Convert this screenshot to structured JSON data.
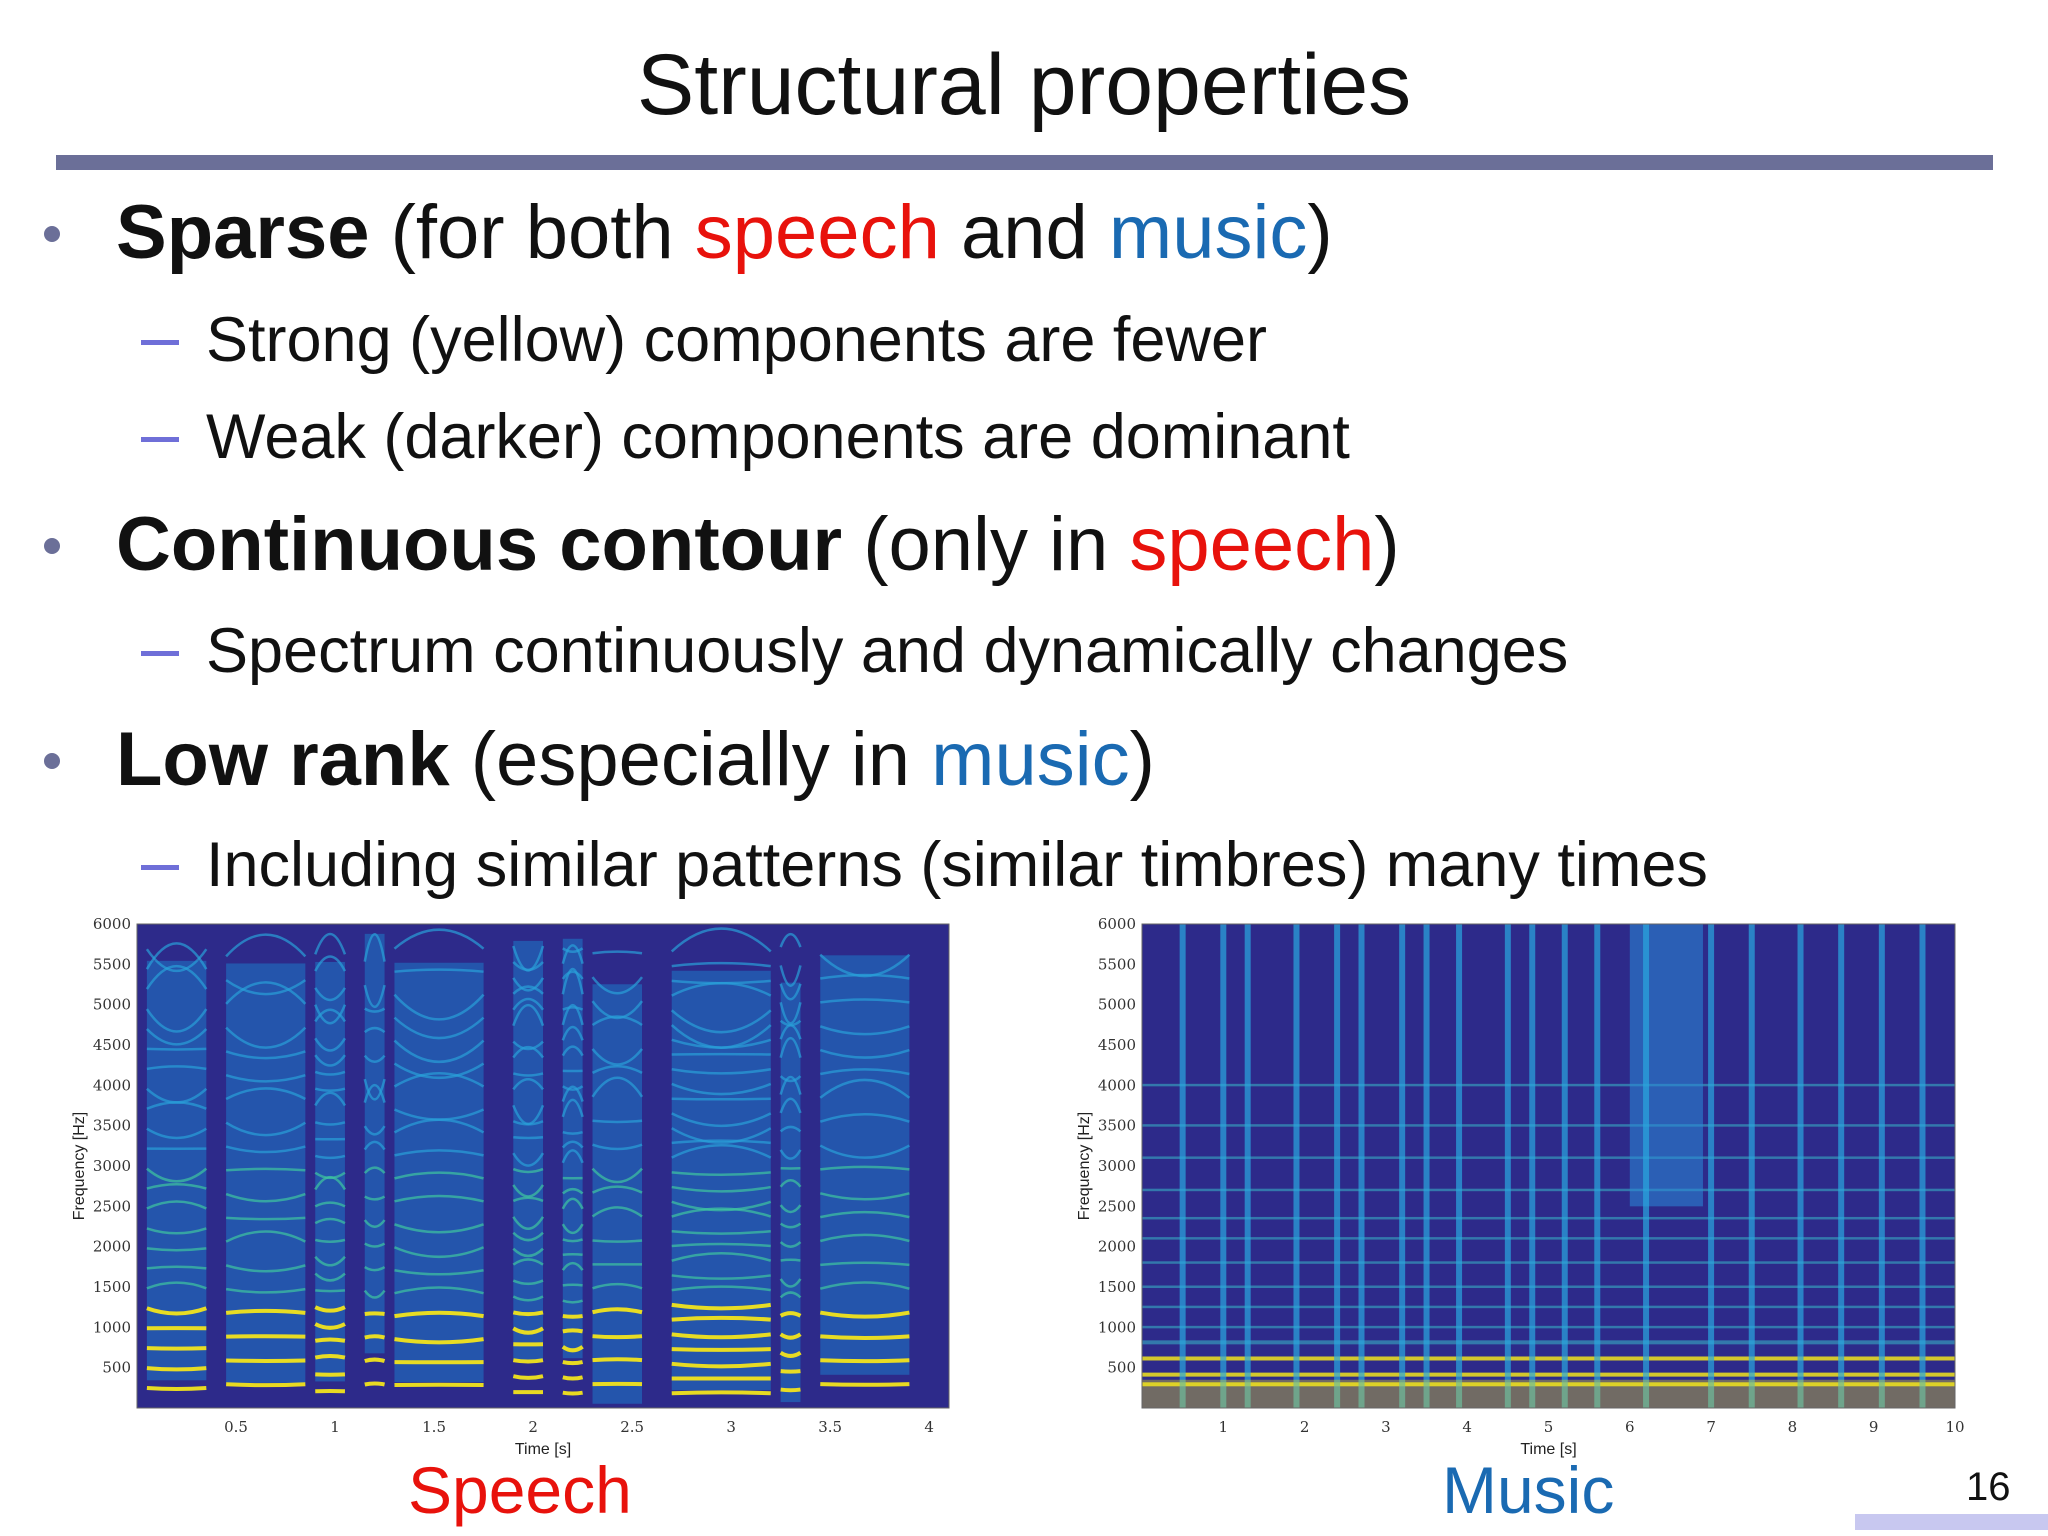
{
  "slide": {
    "title": "Structural properties",
    "page_number": "16"
  },
  "bullets": [
    {
      "bold": "Sparse",
      "rest": [
        {
          "text": " (for both ",
          "color": ""
        },
        {
          "text": "speech",
          "color": "red"
        },
        {
          "text": " and ",
          "color": ""
        },
        {
          "text": "music",
          "color": "blue"
        },
        {
          "text": ")",
          "color": ""
        }
      ],
      "subs": [
        "Strong (yellow) components are fewer",
        "Weak (darker) components are dominant"
      ]
    },
    {
      "bold": "Continuous contour",
      "rest": [
        {
          "text": " (only in ",
          "color": ""
        },
        {
          "text": "speech",
          "color": "red"
        },
        {
          "text": ")",
          "color": ""
        }
      ],
      "subs": [
        "Spectrum continuously and dynamically changes"
      ]
    },
    {
      "bold": "Low rank",
      "rest": [
        {
          "text": " (especially in ",
          "color": ""
        },
        {
          "text": "music",
          "color": "blue"
        },
        {
          "text": ")",
          "color": ""
        }
      ],
      "subs": [
        "Including similar patterns (similar timbres) many times"
      ]
    }
  ],
  "colors": {
    "speech": "#e8120c",
    "music": "#1a6ab2",
    "rule": "#6b6f98",
    "spectrogram_background": "#2d2a8a",
    "spectrogram_strong": "#f2e41c"
  },
  "chart_data": [
    {
      "type": "heatmap",
      "caption": "Speech",
      "xlabel": "Time [s]",
      "ylabel": "Frequency [Hz]",
      "xlim": [
        0,
        4.1
      ],
      "ylim": [
        0,
        6000
      ],
      "x_ticks": [
        "0.5",
        "1",
        "1.5",
        "2",
        "2.5",
        "3",
        "3.5",
        "4"
      ],
      "x_tick_values": [
        0.5,
        1,
        1.5,
        2,
        2.5,
        3,
        3.5,
        4
      ],
      "y_ticks": [
        "500",
        "1000",
        "1500",
        "2000",
        "2500",
        "3000",
        "3500",
        "4000",
        "4500",
        "5000",
        "5500",
        "6000"
      ],
      "y_tick_values": [
        500,
        1000,
        1500,
        2000,
        2500,
        3000,
        3500,
        4000,
        4500,
        5000,
        5500,
        6000
      ],
      "segments": [
        [
          0.05,
          0.35
        ],
        [
          0.45,
          0.85
        ],
        [
          0.9,
          1.05
        ],
        [
          1.15,
          1.25
        ],
        [
          1.3,
          1.75
        ],
        [
          1.9,
          2.05
        ],
        [
          2.15,
          2.25
        ],
        [
          2.3,
          2.55
        ],
        [
          2.7,
          3.2
        ],
        [
          3.25,
          3.35
        ],
        [
          3.45,
          3.9
        ]
      ]
    },
    {
      "type": "heatmap",
      "caption": "Music",
      "xlabel": "Time [s]",
      "ylabel": "Frequency [Hz]",
      "xlim": [
        0,
        10
      ],
      "ylim": [
        0,
        6000
      ],
      "x_ticks": [
        "1",
        "2",
        "3",
        "4",
        "5",
        "6",
        "7",
        "8",
        "9",
        "10"
      ],
      "x_tick_values": [
        1,
        2,
        3,
        4,
        5,
        6,
        7,
        8,
        9,
        10
      ],
      "y_ticks": [
        "500",
        "1000",
        "1500",
        "2000",
        "2500",
        "3000",
        "3500",
        "4000",
        "4500",
        "5000",
        "5500",
        "6000"
      ],
      "y_tick_values": [
        500,
        1000,
        1500,
        2000,
        2500,
        3000,
        3500,
        4000,
        4500,
        5000,
        5500,
        6000
      ],
      "onsets": [
        0.5,
        1.0,
        1.3,
        1.9,
        2.4,
        2.7,
        3.2,
        3.5,
        3.9,
        4.5,
        4.8,
        5.2,
        5.6,
        6.2,
        7.0,
        7.5,
        8.1,
        8.6,
        9.1,
        9.6
      ]
    }
  ]
}
